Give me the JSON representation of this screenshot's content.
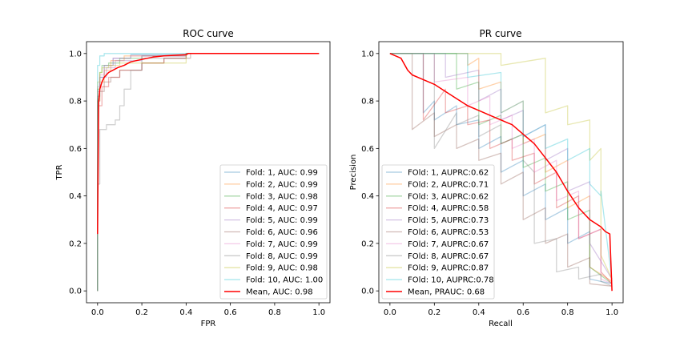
{
  "chart_data": [
    {
      "type": "line",
      "title": "ROC curve",
      "xlabel": "FPR",
      "ylabel": "TPR",
      "xlim": [
        -0.05,
        1.05
      ],
      "ylim": [
        -0.05,
        1.05
      ],
      "xticks": [
        "0.0",
        "0.2",
        "0.4",
        "0.6",
        "0.8",
        "1.0"
      ],
      "yticks": [
        "0.0",
        "0.2",
        "0.4",
        "0.6",
        "0.8",
        "1.0"
      ],
      "grid": false,
      "legend_position": "lower-right",
      "series": [
        {
          "name": "Fold: 1, AUC: 0.99",
          "color": "#1f77b4",
          "x": [
            0,
            0,
            0.01,
            0.01,
            0.03,
            0.03,
            0.07,
            0.07,
            0.15,
            0.15,
            0.4,
            0.4,
            1
          ],
          "y": [
            0,
            0.82,
            0.82,
            0.9,
            0.9,
            0.95,
            0.95,
            0.98,
            0.98,
            0.995,
            0.995,
            1,
            1
          ]
        },
        {
          "name": "Fold: 2, AUC: 0.99",
          "color": "#ff7f0e",
          "x": [
            0,
            0,
            0.01,
            0.01,
            0.03,
            0.03,
            0.06,
            0.06,
            0.12,
            0.12,
            0.4,
            0.4,
            1
          ],
          "y": [
            0,
            0.8,
            0.8,
            0.88,
            0.88,
            0.93,
            0.93,
            0.97,
            0.97,
            0.99,
            0.99,
            1,
            1
          ]
        },
        {
          "name": "Fold: 3, AUC: 0.98",
          "color": "#2ca02c",
          "x": [
            0,
            0,
            0.01,
            0.01,
            0.02,
            0.02,
            0.05,
            0.05,
            0.1,
            0.1,
            0.2,
            0.2,
            0.4,
            0.4,
            1
          ],
          "y": [
            0,
            0.85,
            0.85,
            0.92,
            0.92,
            0.95,
            0.95,
            0.96,
            0.96,
            0.98,
            0.98,
            0.99,
            0.99,
            1,
            1
          ]
        },
        {
          "name": "Fold: 4, AUC: 0.97",
          "color": "#d62728",
          "x": [
            0,
            0,
            0.02,
            0.02,
            0.05,
            0.05,
            0.1,
            0.1,
            0.2,
            0.2,
            0.3,
            0.3,
            0.4,
            0.4,
            1
          ],
          "y": [
            0,
            0.78,
            0.78,
            0.86,
            0.86,
            0.9,
            0.9,
            0.93,
            0.93,
            0.96,
            0.96,
            0.98,
            0.98,
            1,
            1
          ]
        },
        {
          "name": "Fold: 5, AUC: 0.99",
          "color": "#9467bd",
          "x": [
            0,
            0,
            0.01,
            0.01,
            0.04,
            0.04,
            0.08,
            0.08,
            0.2,
            0.2,
            0.4,
            0.4,
            1
          ],
          "y": [
            0,
            0.84,
            0.84,
            0.9,
            0.9,
            0.94,
            0.94,
            0.97,
            0.97,
            0.99,
            0.99,
            1,
            1
          ]
        },
        {
          "name": "Fold: 6, AUC: 0.96",
          "color": "#8c564b",
          "x": [
            0,
            0,
            0.01,
            0.01,
            0.03,
            0.03,
            0.06,
            0.06,
            0.1,
            0.1,
            0.2,
            0.2,
            0.3,
            0.3,
            0.42,
            0.42,
            1
          ],
          "y": [
            0,
            0.8,
            0.8,
            0.84,
            0.84,
            0.88,
            0.88,
            0.9,
            0.9,
            0.93,
            0.93,
            0.96,
            0.96,
            0.98,
            0.98,
            1,
            1
          ]
        },
        {
          "name": "Fold: 7, AUC: 0.99",
          "color": "#e377c2",
          "x": [
            0,
            0,
            0.01,
            0.01,
            0.03,
            0.03,
            0.07,
            0.07,
            0.15,
            0.15,
            0.4,
            0.4,
            1
          ],
          "y": [
            0,
            0.86,
            0.86,
            0.91,
            0.91,
            0.95,
            0.95,
            0.98,
            0.98,
            0.99,
            0.99,
            1,
            1
          ]
        },
        {
          "name": "Fold: 8, AUC: 0.99",
          "color": "#7f7f7f",
          "x": [
            0,
            0,
            0.01,
            0.01,
            0.04,
            0.04,
            0.08,
            0.08,
            0.1,
            0.1,
            0.12,
            0.12,
            0.15,
            0.15,
            0.2,
            0.2,
            0.4,
            0.4,
            1
          ],
          "y": [
            0,
            0.45,
            0.45,
            0.68,
            0.68,
            0.7,
            0.7,
            0.72,
            0.72,
            0.78,
            0.78,
            0.85,
            0.85,
            0.93,
            0.93,
            0.98,
            0.98,
            1,
            1
          ]
        },
        {
          "name": "Fold: 9, AUC: 0.98",
          "color": "#bcbd22",
          "x": [
            0,
            0,
            0.01,
            0.01,
            0.02,
            0.02,
            0.05,
            0.05,
            0.1,
            0.1,
            0.2,
            0.2,
            0.4,
            0.4,
            1
          ],
          "y": [
            0,
            0.88,
            0.88,
            0.92,
            0.92,
            0.94,
            0.94,
            0.95,
            0.95,
            0.96,
            0.96,
            0.96,
            0.96,
            1,
            1
          ]
        },
        {
          "name": "Fold: 10, AUC: 1.00",
          "color": "#17becf",
          "x": [
            0,
            0,
            0.01,
            0.01,
            0.03,
            0.03,
            0.1,
            0.1,
            1
          ],
          "y": [
            0,
            0.95,
            0.95,
            0.99,
            0.99,
            1,
            1,
            1,
            1
          ]
        },
        {
          "name": "Mean, AUC: 0.98",
          "color": "#ff0000",
          "x": [
            0,
            0.005,
            0.01,
            0.02,
            0.03,
            0.05,
            0.07,
            0.09,
            0.12,
            0.15,
            0.2,
            0.25,
            0.3,
            0.4,
            0.41,
            1
          ],
          "y": [
            0.24,
            0.8,
            0.85,
            0.88,
            0.9,
            0.92,
            0.93,
            0.94,
            0.95,
            0.965,
            0.975,
            0.985,
            0.99,
            0.995,
            1,
            1
          ]
        }
      ]
    },
    {
      "type": "line",
      "title": "PR curve",
      "xlabel": "Recall",
      "ylabel": "Precision",
      "xlim": [
        -0.05,
        1.05
      ],
      "ylim": [
        -0.05,
        1.05
      ],
      "xticks": [
        "0.0",
        "0.2",
        "0.4",
        "0.6",
        "0.8",
        "1.0"
      ],
      "yticks": [
        "0.0",
        "0.2",
        "0.4",
        "0.6",
        "0.8",
        "1.0"
      ],
      "grid": false,
      "legend_position": "lower-left",
      "series": [
        {
          "name": "FOld: 1, AUPRC:0.62",
          "color": "#1f77b4",
          "x": [
            0,
            0.15,
            0.15,
            0.2,
            0.2,
            0.3,
            0.3,
            0.4,
            0.4,
            0.5,
            0.5,
            0.6,
            0.6,
            0.7,
            0.7,
            0.8,
            0.8,
            0.9,
            0.9,
            1
          ],
          "y": [
            1,
            1,
            0.75,
            0.8,
            0.72,
            0.78,
            0.7,
            0.72,
            0.6,
            0.65,
            0.5,
            0.55,
            0.4,
            0.45,
            0.3,
            0.35,
            0.2,
            0.25,
            0.05,
            0.03
          ]
        },
        {
          "name": "FOld: 2, AUPRC:0.71",
          "color": "#ff7f0e",
          "x": [
            0,
            0.35,
            0.35,
            0.4,
            0.4,
            0.5,
            0.5,
            0.6,
            0.6,
            0.7,
            0.7,
            0.8,
            0.8,
            0.9,
            0.9,
            1
          ],
          "y": [
            1,
            1,
            0.95,
            0.98,
            0.85,
            0.88,
            0.75,
            0.8,
            0.62,
            0.66,
            0.5,
            0.55,
            0.35,
            0.4,
            0.1,
            0.04
          ]
        },
        {
          "name": "FOld: 3, AUPRC:0.62",
          "color": "#2ca02c",
          "x": [
            0,
            0.3,
            0.3,
            0.4,
            0.4,
            0.5,
            0.5,
            0.6,
            0.6,
            0.7,
            0.7,
            0.8,
            0.8,
            0.9,
            0.9,
            1
          ],
          "y": [
            1,
            1,
            0.85,
            0.88,
            0.7,
            0.74,
            0.62,
            0.66,
            0.52,
            0.56,
            0.42,
            0.46,
            0.3,
            0.34,
            0.1,
            0.03
          ]
        },
        {
          "name": "FOld: 4, AUPRC:0.58",
          "color": "#d62728",
          "x": [
            0,
            0.15,
            0.15,
            0.25,
            0.25,
            0.35,
            0.35,
            0.45,
            0.45,
            0.55,
            0.55,
            0.65,
            0.65,
            0.75,
            0.75,
            0.85,
            0.85,
            0.95,
            0.95,
            1
          ],
          "y": [
            1,
            1,
            0.72,
            0.85,
            0.75,
            0.78,
            0.7,
            0.72,
            0.6,
            0.64,
            0.55,
            0.58,
            0.45,
            0.5,
            0.35,
            0.4,
            0.22,
            0.26,
            0.08,
            0.03
          ]
        },
        {
          "name": "FOld: 5, AUPRC:0.73",
          "color": "#9467bd",
          "x": [
            0,
            0.25,
            0.25,
            0.4,
            0.4,
            0.5,
            0.5,
            0.6,
            0.6,
            0.7,
            0.7,
            0.8,
            0.8,
            0.9,
            0.9,
            1
          ],
          "y": [
            1,
            1,
            0.9,
            0.93,
            0.8,
            0.85,
            0.72,
            0.76,
            0.65,
            0.7,
            0.55,
            0.6,
            0.42,
            0.46,
            0.2,
            0.05
          ]
        },
        {
          "name": "FOld: 6, AUPRC:0.53",
          "color": "#8c564b",
          "x": [
            0,
            0.1,
            0.1,
            0.2,
            0.2,
            0.3,
            0.3,
            0.4,
            0.4,
            0.5,
            0.5,
            0.6,
            0.6,
            0.7,
            0.7,
            0.8,
            0.8,
            0.9,
            0.9,
            1
          ],
          "y": [
            1,
            1,
            0.68,
            0.75,
            0.65,
            0.7,
            0.6,
            0.64,
            0.55,
            0.58,
            0.45,
            0.5,
            0.3,
            0.35,
            0.2,
            0.24,
            0.1,
            0.14,
            0.03,
            0.02
          ]
        },
        {
          "name": "FOld: 7, AUPRC:0.67",
          "color": "#e377c2",
          "x": [
            0,
            0.2,
            0.2,
            0.35,
            0.35,
            0.45,
            0.45,
            0.55,
            0.55,
            0.65,
            0.65,
            0.75,
            0.75,
            0.85,
            0.85,
            0.95,
            0.95,
            1
          ],
          "y": [
            1,
            1,
            0.88,
            0.9,
            0.78,
            0.82,
            0.7,
            0.74,
            0.6,
            0.64,
            0.5,
            0.55,
            0.38,
            0.42,
            0.22,
            0.26,
            0.05,
            0.03
          ]
        },
        {
          "name": "FOld: 8, AUPRC:0.67",
          "color": "#7f7f7f",
          "x": [
            0,
            0.2,
            0.2,
            0.3,
            0.3,
            0.4,
            0.4,
            0.5,
            0.5,
            0.6,
            0.6,
            0.65,
            0.65,
            0.75,
            0.75,
            0.85,
            0.85,
            0.95,
            0.95,
            1
          ],
          "y": [
            1,
            1,
            0.6,
            0.75,
            0.7,
            0.74,
            0.65,
            0.7,
            0.62,
            0.66,
            0.55,
            0.5,
            0.2,
            0.22,
            0.08,
            0.1,
            0.05,
            0.07,
            0.04,
            0.02
          ]
        },
        {
          "name": "FOld: 9, AUPRC:0.87",
          "color": "#bcbd22",
          "x": [
            0,
            0.5,
            0.5,
            0.7,
            0.7,
            0.8,
            0.8,
            0.9,
            0.9,
            0.95,
            0.95,
            1
          ],
          "y": [
            1,
            1,
            0.95,
            0.98,
            0.75,
            0.78,
            0.7,
            0.72,
            0.55,
            0.6,
            0.15,
            0.05
          ]
        },
        {
          "name": "FOld: 10, AUPRC:0.78",
          "color": "#17becf",
          "x": [
            0,
            0.35,
            0.35,
            0.5,
            0.5,
            0.6,
            0.6,
            0.7,
            0.7,
            0.8,
            0.8,
            0.9,
            0.9,
            0.95,
            0.95,
            1
          ],
          "y": [
            1,
            1,
            0.9,
            0.92,
            0.75,
            0.8,
            0.65,
            0.7,
            0.6,
            0.64,
            0.55,
            0.6,
            0.45,
            0.4,
            0.42,
            0.04
          ]
        },
        {
          "name": "Mean, PRAUC: 0.68",
          "color": "#ff0000",
          "x": [
            0,
            0.05,
            0.08,
            0.1,
            0.15,
            0.2,
            0.25,
            0.3,
            0.35,
            0.4,
            0.45,
            0.5,
            0.55,
            0.6,
            0.65,
            0.7,
            0.75,
            0.8,
            0.85,
            0.9,
            0.95,
            0.97,
            0.99,
            1
          ],
          "y": [
            1,
            0.98,
            0.93,
            0.91,
            0.89,
            0.87,
            0.84,
            0.81,
            0.78,
            0.76,
            0.74,
            0.72,
            0.7,
            0.66,
            0.62,
            0.56,
            0.5,
            0.42,
            0.35,
            0.3,
            0.27,
            0.25,
            0.24,
            0
          ]
        }
      ]
    }
  ]
}
